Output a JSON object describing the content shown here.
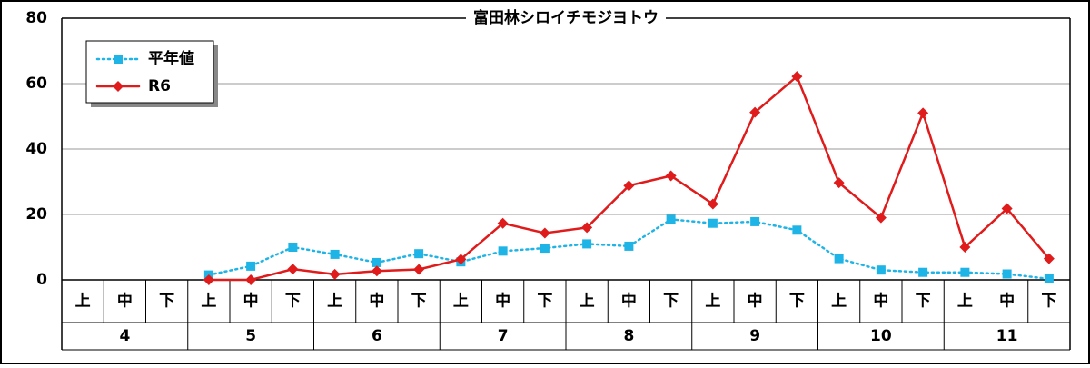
{
  "chart_data": {
    "type": "line",
    "title": "富田林シロイチモジヨトウ",
    "categories": [
      "上",
      "中",
      "下",
      "上",
      "中",
      "下",
      "上",
      "中",
      "下",
      "上",
      "中",
      "下",
      "上",
      "中",
      "下",
      "上",
      "中",
      "下",
      "上",
      "中",
      "下",
      "上",
      "中",
      "下"
    ],
    "groups": [
      "4",
      "5",
      "6",
      "7",
      "8",
      "9",
      "10",
      "11"
    ],
    "series": [
      {
        "name": "平年値",
        "color": "#1fb4e6",
        "style": "dotted",
        "marker": "square",
        "values": [
          null,
          null,
          null,
          1.5,
          4.2,
          10.0,
          7.8,
          5.3,
          8.0,
          5.5,
          8.8,
          9.7,
          11.0,
          10.3,
          18.5,
          17.3,
          17.8,
          15.2,
          6.5,
          3.0,
          2.3,
          2.3,
          1.8,
          0.3
        ]
      },
      {
        "name": "R6",
        "color": "#e01b1b",
        "style": "solid",
        "marker": "diamond",
        "values": [
          null,
          null,
          null,
          0,
          0,
          3.3,
          1.7,
          2.7,
          3.2,
          6.3,
          17.3,
          14.3,
          16.0,
          28.8,
          31.8,
          23.2,
          51.2,
          62.2,
          29.7,
          19.0,
          51.0,
          10.0,
          21.8,
          6.5
        ]
      }
    ],
    "ylim": [
      0,
      80
    ],
    "yticks": [
      0,
      20,
      40,
      60,
      80
    ],
    "grid": true,
    "legend": "top-left"
  }
}
